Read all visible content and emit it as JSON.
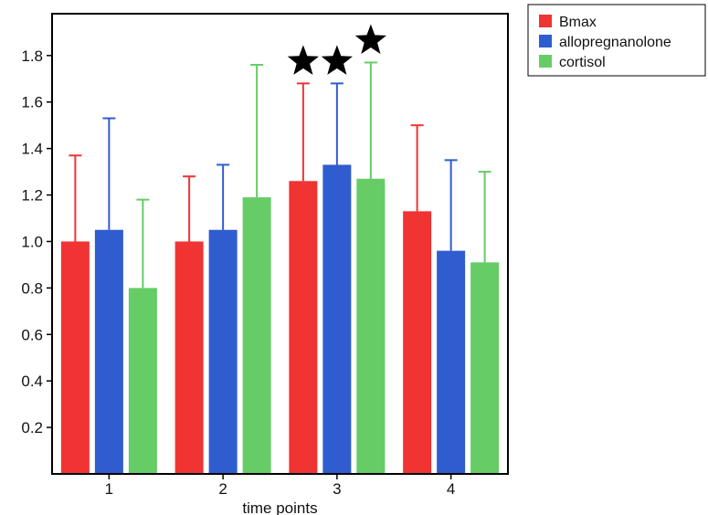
{
  "chart_data": {
    "type": "bar",
    "categories": [
      "1",
      "2",
      "3",
      "4"
    ],
    "xlabel": "time points",
    "ylabel": "",
    "ylim": [
      0,
      1.98
    ],
    "yticks": [
      0.2,
      0.4,
      0.6,
      0.8,
      1.0,
      1.2,
      1.4,
      1.6,
      1.8
    ],
    "ytick_labels": [
      "0.2",
      "0.4",
      "0.6",
      "0.8",
      "1.0",
      "1.2",
      "1.4",
      "1.6",
      "1.8"
    ],
    "series": [
      {
        "name": "Bmax",
        "color": "#f03333",
        "values": [
          1.0,
          1.0,
          1.26,
          1.13
        ],
        "errors": [
          0.37,
          0.28,
          0.42,
          0.37
        ]
      },
      {
        "name": "allopregnanolone",
        "color": "#2f5ccf",
        "values": [
          1.05,
          1.05,
          1.33,
          0.96
        ],
        "errors": [
          0.48,
          0.28,
          0.35,
          0.39
        ]
      },
      {
        "name": "cortisol",
        "color": "#66cc66",
        "values": [
          0.8,
          1.19,
          1.27,
          0.91
        ],
        "errors": [
          0.38,
          0.57,
          0.5,
          0.39
        ]
      }
    ],
    "significance_markers": [
      {
        "category": "3",
        "series": "Bmax",
        "symbol": "★"
      },
      {
        "category": "3",
        "series": "allopregnanolone",
        "symbol": "★"
      },
      {
        "category": "3",
        "series": "cortisol",
        "symbol": "★"
      }
    ],
    "legend": {
      "position": "top-right-outside",
      "items": [
        "Bmax",
        "allopregnanolone",
        "cortisol"
      ]
    },
    "grid": false
  }
}
